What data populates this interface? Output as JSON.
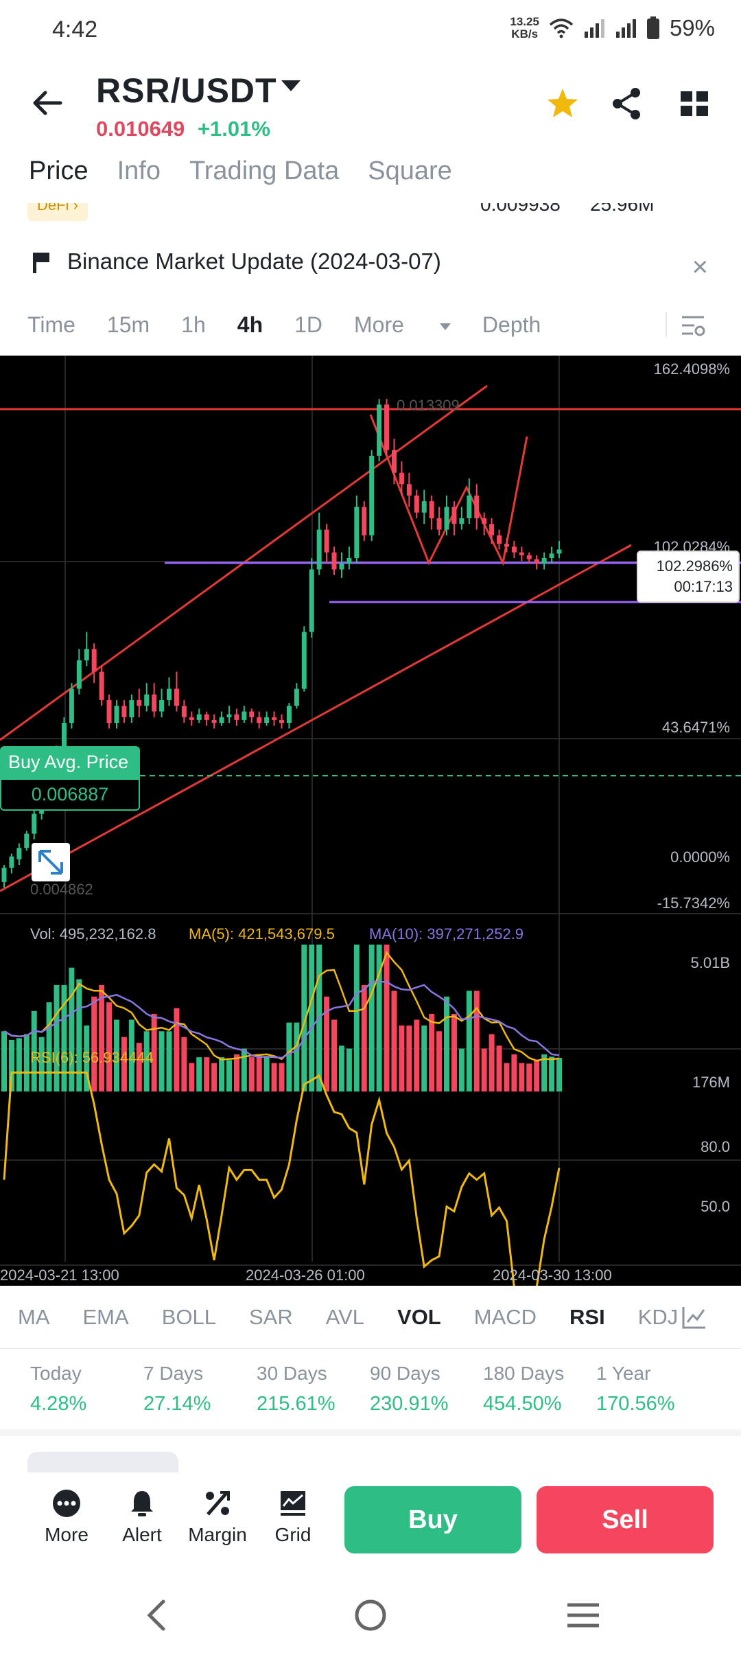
{
  "status": {
    "time": "4:42",
    "net_speed_value": "13.25",
    "net_speed_unit": "KB/s",
    "battery": "59%"
  },
  "header": {
    "pair": "RSR/USDT",
    "price": "0.010649",
    "change": "+1.01%"
  },
  "tabs": [
    {
      "label": "Price",
      "active": true
    },
    {
      "label": "Info"
    },
    {
      "label": "Trading Data"
    },
    {
      "label": "Square"
    }
  ],
  "partial_row": {
    "tag": "DeFi",
    "value1": "0.009938",
    "value2": "25.96M"
  },
  "news": {
    "title": "Binance Market Update (2024-03-07)"
  },
  "intervals": [
    {
      "label": "Time"
    },
    {
      "label": "15m"
    },
    {
      "label": "1h"
    },
    {
      "label": "4h",
      "active": true
    },
    {
      "label": "1D"
    },
    {
      "label": "More"
    },
    {
      "label": "Depth"
    }
  ],
  "chart_data": {
    "type": "candlestick",
    "axis_labels": [
      "162.4098%",
      "102.0284%",
      "43.6471%",
      "0.0000%",
      "-15.7342%"
    ],
    "high_label": "0.013309",
    "low_label": "0.004862",
    "current_price_pct": "102.2986%",
    "countdown": "00:17:13",
    "buy_avg_label": "Buy Avg. Price",
    "buy_avg_price": "0.006887",
    "candles": [
      [
        0.0048,
        0.00505,
        0.0047,
        0.0051
      ],
      [
        0.00505,
        0.00525,
        0.00495,
        0.0053
      ],
      [
        0.0052,
        0.0054,
        0.0051,
        0.00548
      ],
      [
        0.0054,
        0.00565,
        0.00535,
        0.0057
      ],
      [
        0.00565,
        0.006,
        0.00555,
        0.0061
      ],
      [
        0.006,
        0.0062,
        0.0059,
        0.0063
      ],
      [
        0.0062,
        0.0066,
        0.0061,
        0.0067
      ],
      [
        0.0066,
        0.0071,
        0.0065,
        0.0072
      ],
      [
        0.0071,
        0.0076,
        0.007,
        0.0077
      ],
      [
        0.0076,
        0.0082,
        0.0075,
        0.0083
      ],
      [
        0.0082,
        0.0087,
        0.0081,
        0.0089
      ],
      [
        0.0087,
        0.0089,
        0.0086,
        0.0092
      ],
      [
        0.0089,
        0.0085,
        0.0083,
        0.009
      ],
      [
        0.0085,
        0.008,
        0.0079,
        0.0086
      ],
      [
        0.008,
        0.0076,
        0.0075,
        0.0081
      ],
      [
        0.0076,
        0.0079,
        0.0075,
        0.008
      ],
      [
        0.0079,
        0.0077,
        0.0076,
        0.008
      ],
      [
        0.0077,
        0.008,
        0.0076,
        0.0081
      ],
      [
        0.008,
        0.0079,
        0.0077,
        0.0082
      ],
      [
        0.0079,
        0.0081,
        0.0078,
        0.0083
      ],
      [
        0.0081,
        0.0078,
        0.0077,
        0.0083
      ],
      [
        0.0078,
        0.008,
        0.0077,
        0.0082
      ],
      [
        0.008,
        0.0082,
        0.0079,
        0.0084
      ],
      [
        0.0082,
        0.0079,
        0.0078,
        0.0085
      ],
      [
        0.0079,
        0.0077,
        0.0076,
        0.008
      ],
      [
        0.0077,
        0.00765,
        0.00755,
        0.0078
      ],
      [
        0.00765,
        0.00775,
        0.0076,
        0.00785
      ],
      [
        0.00775,
        0.00765,
        0.00755,
        0.0078
      ],
      [
        0.00765,
        0.0076,
        0.0075,
        0.00775
      ],
      [
        0.0076,
        0.0077,
        0.00755,
        0.0078
      ],
      [
        0.0077,
        0.00775,
        0.0076,
        0.0079
      ],
      [
        0.00775,
        0.00765,
        0.00755,
        0.00785
      ],
      [
        0.00765,
        0.0078,
        0.0076,
        0.0079
      ],
      [
        0.0078,
        0.0077,
        0.0076,
        0.00785
      ],
      [
        0.0077,
        0.0076,
        0.0075,
        0.0078
      ],
      [
        0.0076,
        0.0077,
        0.00755,
        0.0078
      ],
      [
        0.0077,
        0.00765,
        0.00755,
        0.0078
      ],
      [
        0.00765,
        0.0076,
        0.0075,
        0.00775
      ],
      [
        0.0076,
        0.0079,
        0.0075,
        0.00795
      ],
      [
        0.0079,
        0.0082,
        0.00785,
        0.0083
      ],
      [
        0.0082,
        0.0092,
        0.00815,
        0.0093
      ],
      [
        0.0092,
        0.0103,
        0.0091,
        0.0105
      ],
      [
        0.0103,
        0.011,
        0.0102,
        0.0113
      ],
      [
        0.011,
        0.0106,
        0.0104,
        0.0111
      ],
      [
        0.0106,
        0.0103,
        0.0102,
        0.0107
      ],
      [
        0.0103,
        0.0104,
        0.01015,
        0.0106
      ],
      [
        0.0104,
        0.0105,
        0.0103,
        0.0107
      ],
      [
        0.0105,
        0.0114,
        0.0104,
        0.0116
      ],
      [
        0.0114,
        0.0109,
        0.0108,
        0.0115
      ],
      [
        0.0109,
        0.0123,
        0.0108,
        0.0124
      ],
      [
        0.0123,
        0.0132,
        0.0122,
        0.0133
      ],
      [
        0.0132,
        0.0124,
        0.0123,
        0.0133
      ],
      [
        0.0124,
        0.012,
        0.0118,
        0.0126
      ],
      [
        0.012,
        0.0118,
        0.0116,
        0.0122
      ],
      [
        0.0118,
        0.0116,
        0.0114,
        0.012
      ],
      [
        0.0116,
        0.0113,
        0.0112,
        0.0117
      ],
      [
        0.0113,
        0.0115,
        0.0111,
        0.0117
      ],
      [
        0.0115,
        0.0112,
        0.011,
        0.0116
      ],
      [
        0.0112,
        0.011,
        0.0109,
        0.0114
      ],
      [
        0.011,
        0.0114,
        0.0109,
        0.0116
      ],
      [
        0.0114,
        0.0111,
        0.0109,
        0.0115
      ],
      [
        0.0111,
        0.0112,
        0.011,
        0.0114
      ],
      [
        0.0112,
        0.0116,
        0.0111,
        0.0119
      ],
      [
        0.0116,
        0.0112,
        0.011,
        0.0118
      ],
      [
        0.0112,
        0.0111,
        0.0109,
        0.0113
      ],
      [
        0.0111,
        0.0109,
        0.01075,
        0.0112
      ],
      [
        0.0109,
        0.01075,
        0.01065,
        0.011
      ],
      [
        0.01075,
        0.0107,
        0.0106,
        0.01085
      ],
      [
        0.0107,
        0.0106,
        0.0105,
        0.0108
      ],
      [
        0.0106,
        0.01055,
        0.01045,
        0.0107
      ],
      [
        0.01055,
        0.01048,
        0.0104,
        0.0106
      ],
      [
        0.01048,
        0.0104,
        0.0103,
        0.01055
      ],
      [
        0.0104,
        0.0105,
        0.0103,
        0.0106
      ],
      [
        0.0105,
        0.01058,
        0.0104,
        0.0107
      ],
      [
        0.01058,
        0.01065,
        0.0105,
        0.0108
      ]
    ],
    "volume_label": "Vol: 495,232,162.8",
    "ma5_label": "MA(5): 421,543,679.5",
    "ma10_label": "MA(10): 397,271,252.9",
    "volume_axis": [
      "5.01B",
      "176M"
    ],
    "rsi_label": "RSI(6): 56.934444",
    "rsi_axis": [
      "80.0",
      "50.0"
    ],
    "x_labels": [
      "2024-03-21 13:00",
      "2024-03-26 01:00",
      "2024-03-30 13:00"
    ]
  },
  "colors": {
    "up": "#2ebd85",
    "down": "#f6465d",
    "ma5": "#f0b90b",
    "ma10": "#8b75e0",
    "accent_purple": "#9966ff"
  },
  "indicators": [
    {
      "label": "MA"
    },
    {
      "label": "EMA"
    },
    {
      "label": "BOLL"
    },
    {
      "label": "SAR"
    },
    {
      "label": "AVL"
    },
    {
      "label": "VOL",
      "on": true
    },
    {
      "label": "MACD"
    },
    {
      "label": "RSI",
      "on": true
    },
    {
      "label": "KDJ"
    }
  ],
  "periods": [
    {
      "k": "Today",
      "v": "4.28%"
    },
    {
      "k": "7 Days",
      "v": "27.14%"
    },
    {
      "k": "30 Days",
      "v": "215.61%"
    },
    {
      "k": "90 Days",
      "v": "230.91%"
    },
    {
      "k": "180 Days",
      "v": "454.50%"
    },
    {
      "k": "1 Year",
      "v": "170.56%"
    }
  ],
  "actions": {
    "more": "More",
    "alert": "Alert",
    "margin": "Margin",
    "grid": "Grid",
    "buy": "Buy",
    "sell": "Sell"
  }
}
